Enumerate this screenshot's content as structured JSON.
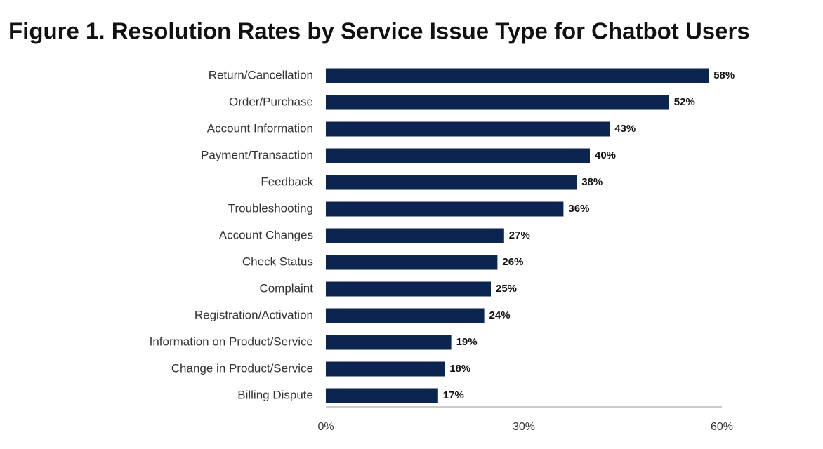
{
  "chart_data": {
    "type": "bar",
    "orientation": "horizontal",
    "title": "Figure 1. Resolution Rates by Service Issue Type for Chatbot Users",
    "categories": [
      "Return/Cancellation",
      "Order/Purchase",
      "Account Information",
      "Payment/Transaction",
      "Feedback",
      "Troubleshooting",
      "Account Changes",
      "Check Status",
      "Complaint",
      "Registration/Activation",
      "Information on Product/Service",
      "Change in Product/Service",
      "Billing Dispute"
    ],
    "values": [
      58,
      52,
      43,
      40,
      38,
      36,
      27,
      26,
      25,
      24,
      19,
      18,
      17
    ],
    "value_labels": [
      "58%",
      "52%",
      "43%",
      "40%",
      "38%",
      "36%",
      "27%",
      "26%",
      "25%",
      "24%",
      "19%",
      "18%",
      "17%"
    ],
    "color": "#0c2450",
    "xlim": [
      0,
      60
    ],
    "xticks": [
      {
        "value": 0,
        "label": "0%"
      },
      {
        "value": 30,
        "label": "30%"
      },
      {
        "value": 60,
        "label": "60%"
      }
    ]
  }
}
